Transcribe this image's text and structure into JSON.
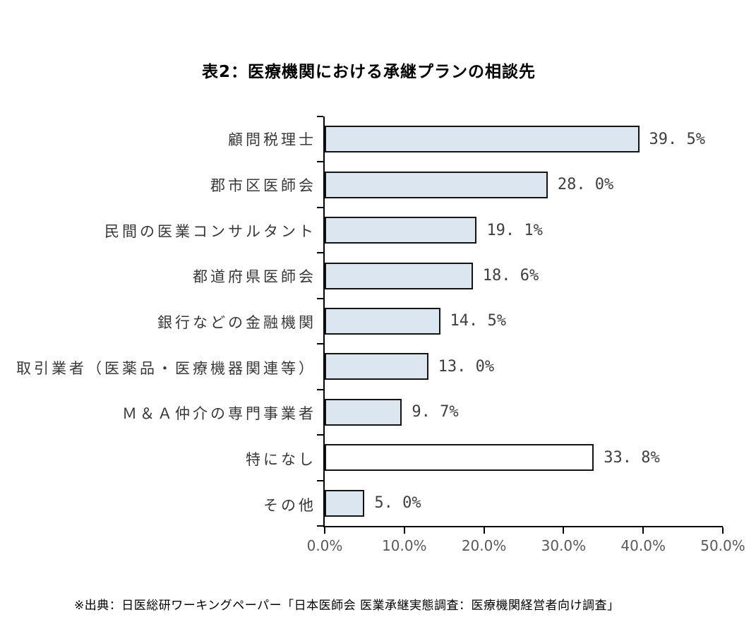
{
  "title": "表2：医療機関における承継プランの相談先",
  "source_note": "※出典：日医総研ワーキングペーパー「日本医師会 医業承継実態調査：医療機関経営者向け調査」",
  "chart_data": {
    "type": "bar",
    "orientation": "horizontal",
    "title": "表2：医療機関における承継プランの相談先",
    "categories": [
      "顧問税理士",
      "郡市区医師会",
      "民間の医業コンサルタント",
      "都道府県医師会",
      "銀行などの金融機関",
      "取引業者（医薬品・医療機器関連等）",
      "Ｍ＆Ａ仲介の専門事業者",
      "特になし",
      "その他"
    ],
    "values": [
      39.5,
      28.0,
      19.1,
      18.6,
      14.5,
      13.0,
      9.7,
      33.8,
      5.0
    ],
    "value_labels": [
      "39. 5%",
      "28. 0%",
      "19. 1%",
      "18. 6%",
      "14. 5%",
      "13. 0%",
      "9. 7%",
      "33. 8%",
      "5. 0%"
    ],
    "bar_fills": [
      "#dce6f1",
      "#dce6f1",
      "#dce6f1",
      "#dce6f1",
      "#dce6f1",
      "#dce6f1",
      "#dce6f1",
      "#ffffff",
      "#dce6f1"
    ],
    "xlabel": "",
    "ylabel": "",
    "xlim": [
      0,
      50
    ],
    "x_ticks": [
      "0.0%",
      "10.0%",
      "20.0%",
      "30.0%",
      "40.0%",
      "50.0%"
    ],
    "grid": false,
    "legend": "none",
    "colors": {
      "bar_fill": "#dce6f1",
      "bar_fill_none_answer": "#ffffff",
      "bar_border": "#141414",
      "axis": "#000000",
      "tick_label": "#595959",
      "value_label": "#3f3f3f",
      "category_label": "#383838"
    }
  }
}
